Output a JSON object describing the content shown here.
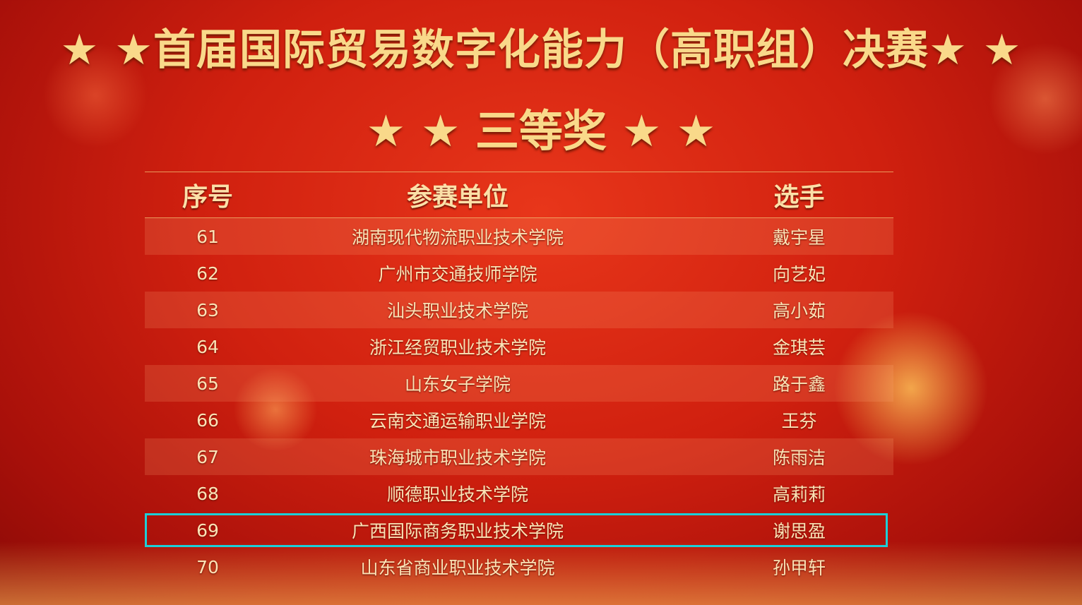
{
  "title": "★ ★首届国际贸易数字化能力（高职组）决赛★ ★",
  "subtitle": "★ ★ 三等奖 ★ ★",
  "table": {
    "headers": [
      "序号",
      "参赛单位",
      "选手"
    ],
    "rows": [
      {
        "no": "61",
        "unit": "湖南现代物流职业技术学院",
        "player": "戴宇星"
      },
      {
        "no": "62",
        "unit": "广州市交通技师学院",
        "player": "向艺妃"
      },
      {
        "no": "63",
        "unit": "汕头职业技术学院",
        "player": "高小茹"
      },
      {
        "no": "64",
        "unit": "浙江经贸职业技术学院",
        "player": "金琪芸"
      },
      {
        "no": "65",
        "unit": "山东女子学院",
        "player": "路于鑫"
      },
      {
        "no": "66",
        "unit": "云南交通运输职业学院",
        "player": "王芬"
      },
      {
        "no": "67",
        "unit": "珠海城市职业技术学院",
        "player": "陈雨洁"
      },
      {
        "no": "68",
        "unit": "顺德职业技术学院",
        "player": "高莉莉"
      },
      {
        "no": "69",
        "unit": "广西国际商务职业技术学院",
        "player": "谢思盈"
      },
      {
        "no": "70",
        "unit": "山东省商业职业技术学院",
        "player": "孙甲轩"
      }
    ],
    "highlighted_row": "69"
  },
  "colors": {
    "background": "#d0200f",
    "text_gold": "#f9d98a",
    "highlight": "#1dcfd8"
  }
}
